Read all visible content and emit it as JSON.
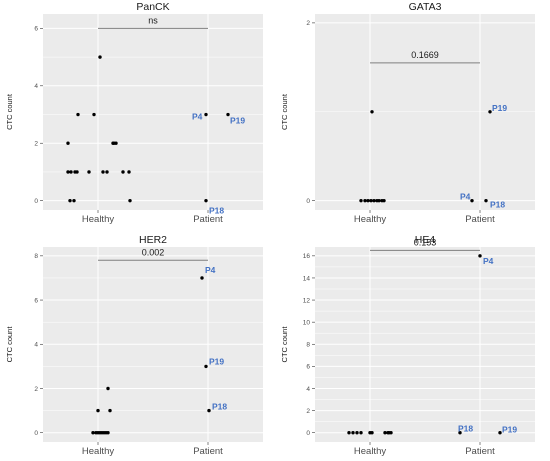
{
  "colors": {
    "panel": "#ebebeb",
    "grid": "#ffffff",
    "point": "#000000",
    "patient_label": "#4472c4",
    "bracket": "#7f7f7f"
  },
  "chart_data": [
    {
      "type": "scatter",
      "title": "PanCK",
      "ylabel": "CTC count",
      "categories": [
        "Healthy",
        "Patient"
      ],
      "ylim": [
        0,
        6.5
      ],
      "yticks": [
        0,
        2,
        4,
        6
      ],
      "groups": [
        {
          "category": "Healthy",
          "values": [
            0,
            0,
            0,
            1,
            1,
            1,
            1,
            1,
            1,
            1,
            1,
            1,
            2,
            2,
            2,
            2,
            3,
            3,
            5
          ]
        },
        {
          "category": "Patient",
          "values": [
            0,
            3,
            3
          ],
          "labels": [
            "P18",
            "P4",
            "P19"
          ]
        }
      ],
      "comparison": {
        "label": "ns",
        "y": 6
      }
    },
    {
      "type": "scatter",
      "title": "GATA3",
      "ylabel": "CTC count",
      "categories": [
        "Healthy",
        "Patient"
      ],
      "ylim": [
        0,
        2.1
      ],
      "yticks": [
        0,
        2
      ],
      "groups": [
        {
          "category": "Healthy",
          "values": [
            0,
            0,
            0,
            0,
            0,
            0,
            0,
            0,
            0,
            1
          ]
        },
        {
          "category": "Patient",
          "values": [
            0,
            0,
            1
          ],
          "labels": [
            "P4",
            "P18",
            "P19"
          ]
        }
      ],
      "comparison": {
        "label": "0.1669",
        "y": 1.55
      }
    },
    {
      "type": "scatter",
      "title": "HER2",
      "ylabel": "CTC count",
      "categories": [
        "Healthy",
        "Patient"
      ],
      "ylim": [
        0,
        8.4
      ],
      "yticks": [
        0,
        2,
        4,
        6,
        8
      ],
      "groups": [
        {
          "category": "Healthy",
          "values": [
            0,
            0,
            0,
            0,
            0,
            0,
            0,
            0,
            1,
            1,
            2
          ]
        },
        {
          "category": "Patient",
          "values": [
            7,
            3,
            1
          ],
          "labels": [
            "P4",
            "P19",
            "P18"
          ]
        }
      ],
      "comparison": {
        "label": "0.002",
        "y": 7.8
      }
    },
    {
      "type": "scatter",
      "title": "HE4",
      "ylabel": "CTC count",
      "categories": [
        "Healthy",
        "Patient"
      ],
      "ylim": [
        0,
        16.8
      ],
      "yticks": [
        0,
        2,
        4,
        6,
        8,
        10,
        12,
        14,
        16
      ],
      "groups": [
        {
          "category": "Healthy",
          "values": [
            0,
            0,
            0,
            0,
            0,
            0,
            0,
            0,
            0,
            0
          ]
        },
        {
          "category": "Patient",
          "values": [
            16,
            0,
            0
          ],
          "labels": [
            "P4",
            "P18",
            "P19"
          ]
        }
      ],
      "comparison": {
        "label": "0.153",
        "y": 16.5
      }
    }
  ]
}
